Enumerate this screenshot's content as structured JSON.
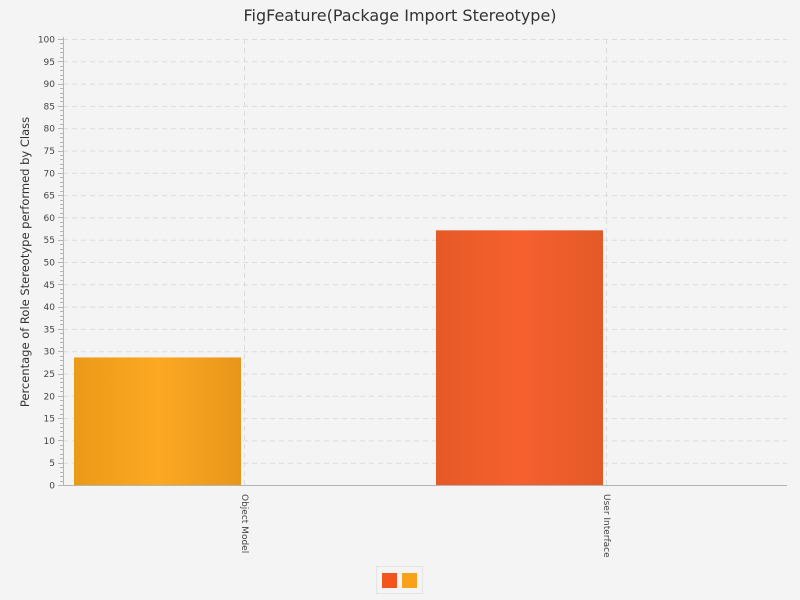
{
  "chart_data": {
    "type": "bar",
    "title": "FigFeature(Package Import Stereotype)",
    "xlabel": "",
    "ylabel": "Percentage of Role Stereotype performed by Class",
    "categories": [
      "Object Model",
      "User Interface"
    ],
    "ylim": [
      0,
      100
    ],
    "ytick_step": 5,
    "yticks": [
      "0",
      "5",
      "10",
      "15",
      "20",
      "25",
      "30",
      "35",
      "40",
      "45",
      "50",
      "55",
      "60",
      "65",
      "70",
      "75",
      "80",
      "85",
      "90",
      "95",
      "100"
    ],
    "grid": true,
    "legend_position": "bottom",
    "series": [
      {
        "values": [
          28.6,
          0
        ],
        "color": "#f2561d"
      },
      {
        "values": [
          0,
          57.1
        ],
        "color": "#f9a11b"
      }
    ],
    "bar_colors": {
      "Object Model": "#f9a11b",
      "User Interface": "#f2561d"
    }
  }
}
